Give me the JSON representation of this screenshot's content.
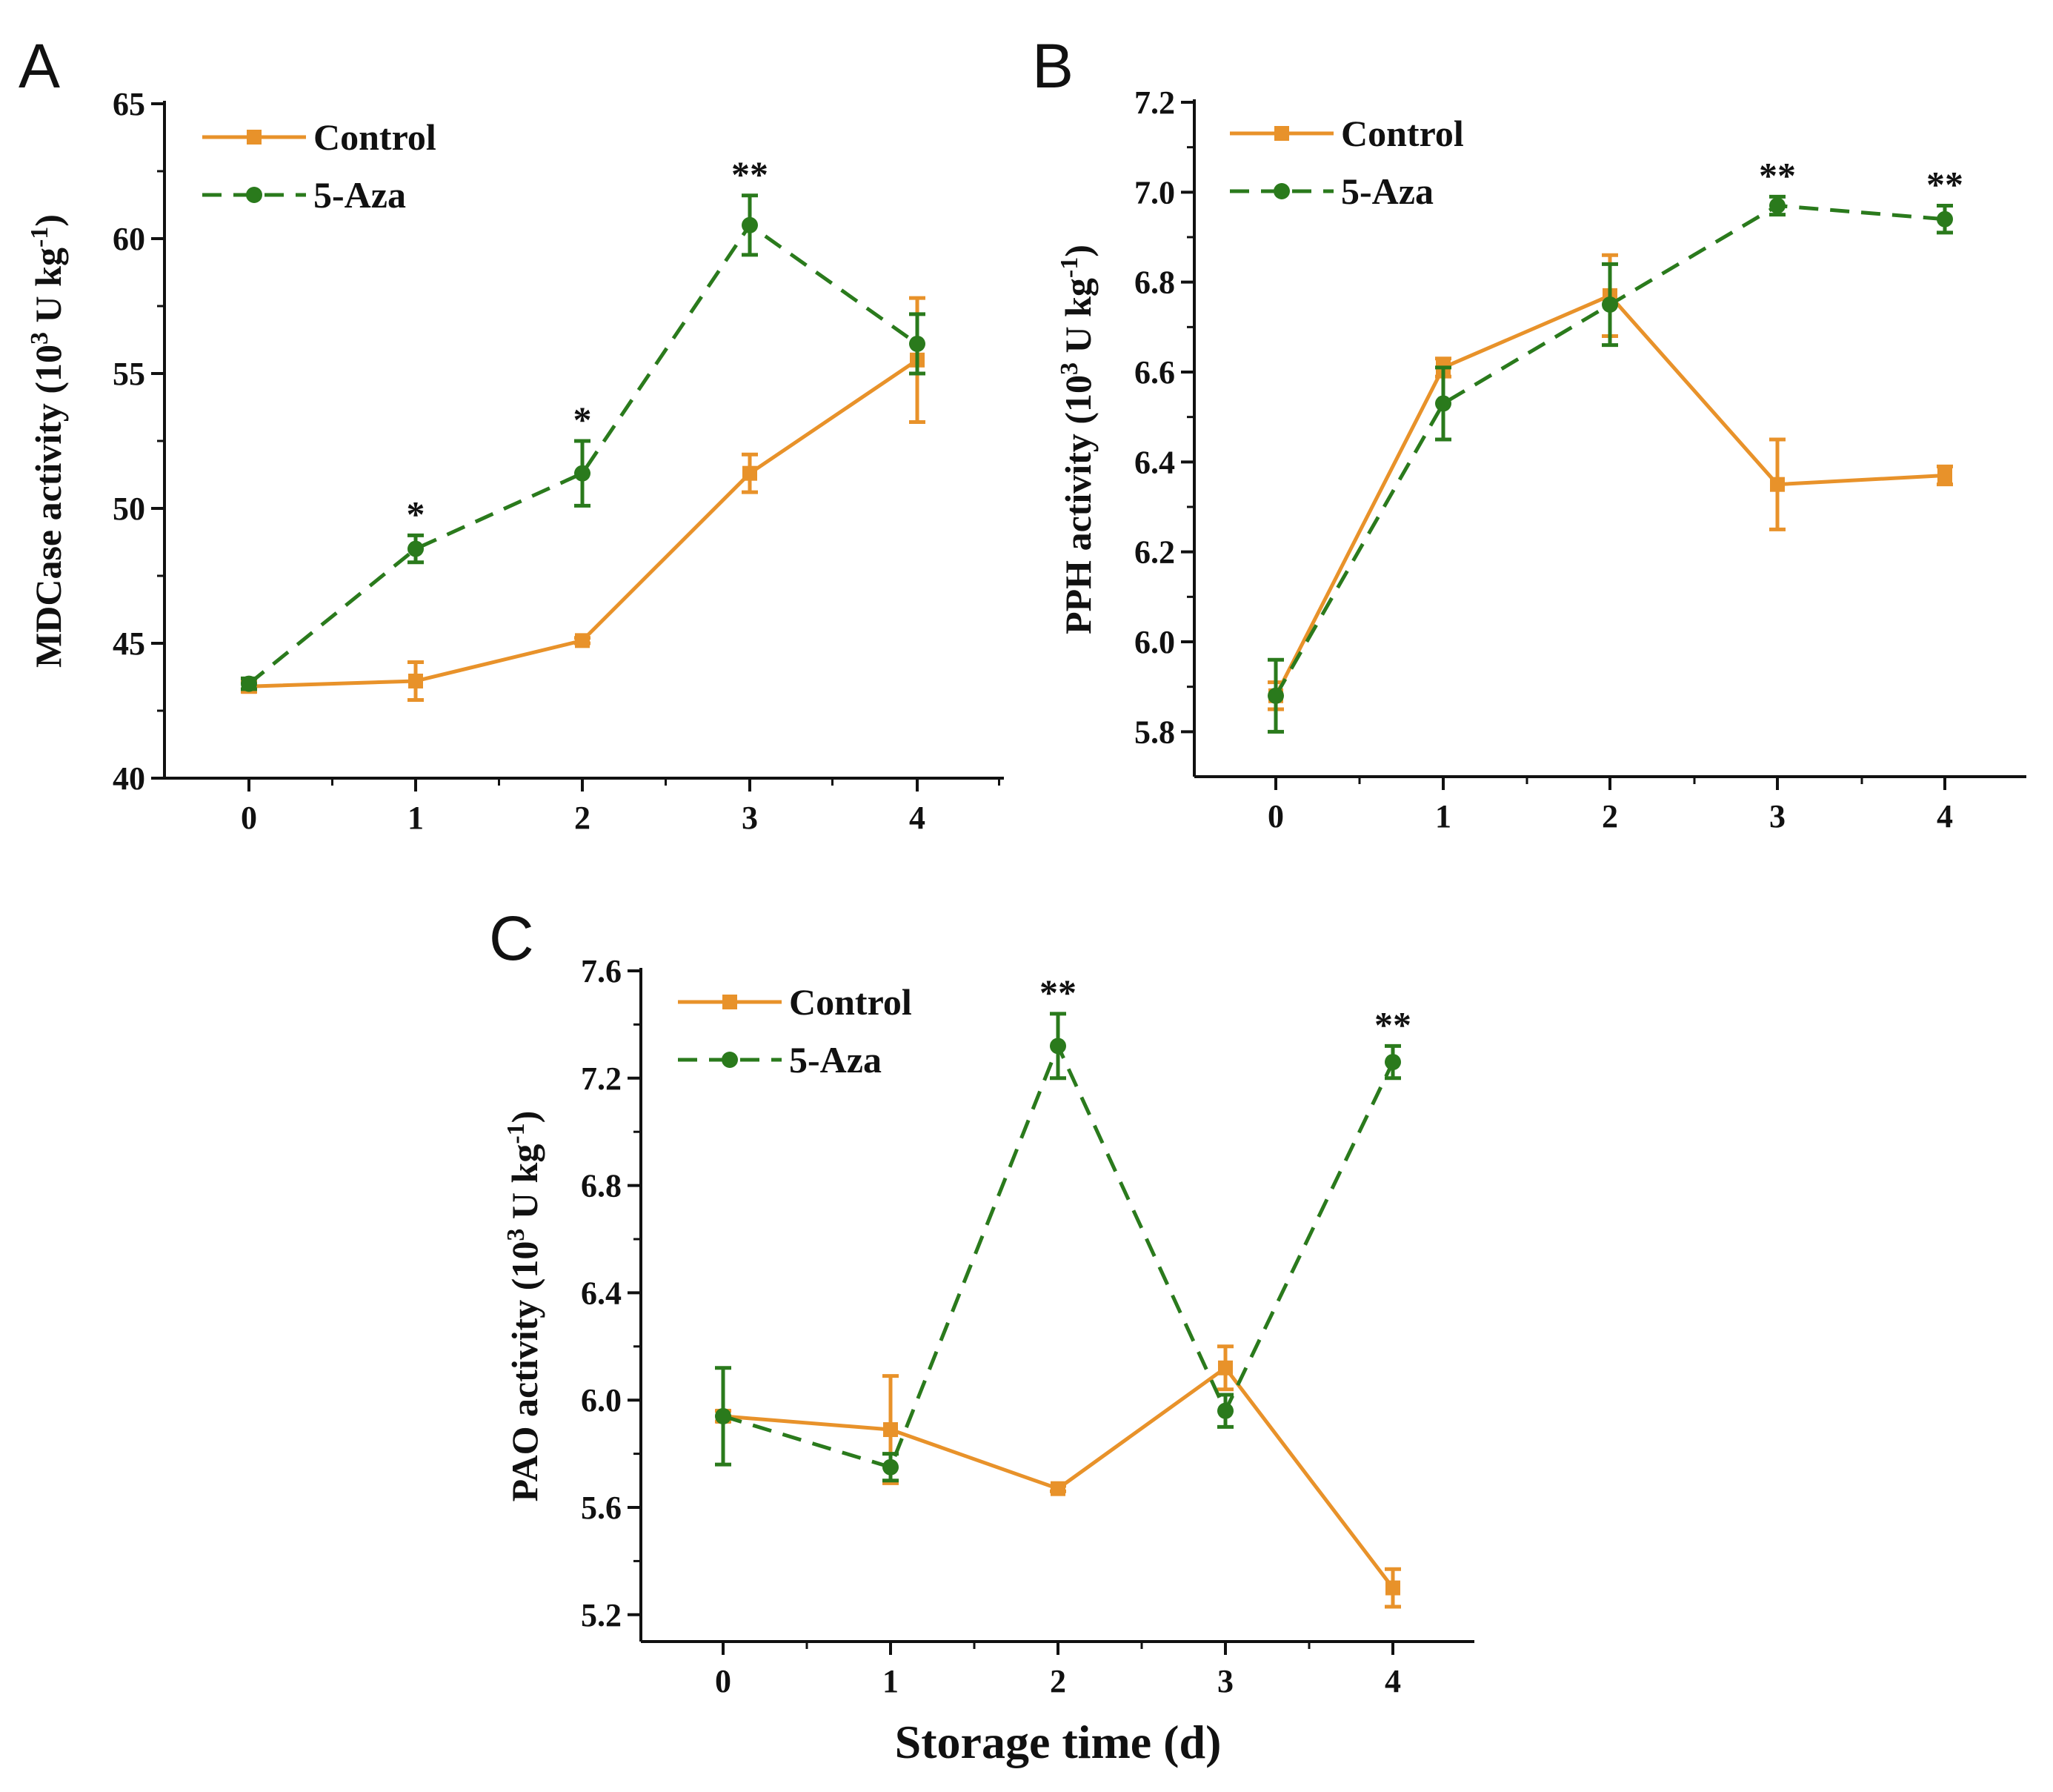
{
  "colors": {
    "control": "#e8922a",
    "aza": "#2a7a1c",
    "axis": "#111111"
  },
  "xlabel": "Storage time (d)",
  "chart_data": [
    {
      "panel": "A",
      "type": "line",
      "ylabel_main": "MDCase activity (10",
      "ylabel_sup1": "3",
      "ylabel_mid": " U kg",
      "ylabel_sup2": "-1",
      "ylabel_end": ")",
      "x": [
        0,
        1,
        2,
        3,
        4
      ],
      "xticks": [
        "0",
        "1",
        "2",
        "3",
        "4"
      ],
      "ylim": [
        40,
        65
      ],
      "yticks": [
        40,
        45,
        50,
        55,
        60,
        65
      ],
      "ytick_labels": [
        "40",
        "45",
        "50",
        "55",
        "60",
        "65"
      ],
      "legend": {
        "position": "top-left",
        "entries": [
          "Control",
          "5-Aza"
        ]
      },
      "series": [
        {
          "name": "Control",
          "values": [
            43.4,
            43.6,
            45.1,
            51.3,
            55.5
          ],
          "errors": [
            0.2,
            0.7,
            0.1,
            0.7,
            2.3
          ]
        },
        {
          "name": "5-Aza",
          "values": [
            43.5,
            48.5,
            51.3,
            60.5,
            56.1
          ],
          "errors": [
            0.2,
            0.5,
            1.2,
            1.1,
            1.1
          ]
        }
      ],
      "annotations": [
        {
          "x": 1,
          "text": "*"
        },
        {
          "x": 2,
          "text": "*"
        },
        {
          "x": 3,
          "text": "**"
        }
      ]
    },
    {
      "panel": "B",
      "type": "line",
      "ylabel_main": "PPH activity (10",
      "ylabel_sup1": "3",
      "ylabel_mid": " U kg",
      "ylabel_sup2": "-1",
      "ylabel_end": ")",
      "x": [
        0,
        1,
        2,
        3,
        4
      ],
      "xticks": [
        "0",
        "1",
        "2",
        "3",
        "4"
      ],
      "ylim": [
        5.7,
        7.2
      ],
      "yticks": [
        5.8,
        6.0,
        6.2,
        6.4,
        6.6,
        6.8,
        7.0,
        7.2
      ],
      "ytick_labels": [
        "5.8",
        "6.0",
        "6.2",
        "6.4",
        "6.6",
        "6.8",
        "7.0",
        "7.2"
      ],
      "legend": {
        "position": "top-left",
        "entries": [
          "Control",
          "5-Aza"
        ]
      },
      "series": [
        {
          "name": "Control",
          "values": [
            5.88,
            6.61,
            6.77,
            6.35,
            6.37
          ],
          "errors": [
            0.03,
            0.02,
            0.09,
            0.1,
            0.02
          ]
        },
        {
          "name": "5-Aza",
          "values": [
            5.88,
            6.53,
            6.75,
            6.97,
            6.94
          ],
          "errors": [
            0.08,
            0.08,
            0.09,
            0.02,
            0.03
          ]
        }
      ],
      "annotations": [
        {
          "x": 3,
          "text": "**"
        },
        {
          "x": 4,
          "text": "**"
        }
      ]
    },
    {
      "panel": "C",
      "type": "line",
      "ylabel_main": "PAO activity (10",
      "ylabel_sup1": "3",
      "ylabel_mid": " U kg",
      "ylabel_sup2": "-1",
      "ylabel_end": ")",
      "x": [
        0,
        1,
        2,
        3,
        4
      ],
      "xticks": [
        "0",
        "1",
        "2",
        "3",
        "4"
      ],
      "ylim": [
        5.1,
        7.6
      ],
      "yticks": [
        5.2,
        5.6,
        6.0,
        6.4,
        6.8,
        7.2,
        7.6
      ],
      "ytick_labels": [
        "5.2",
        "5.6",
        "6.0",
        "6.4",
        "6.8",
        "7.2",
        "7.6"
      ],
      "legend": {
        "position": "top-left",
        "entries": [
          "Control",
          "5-Aza"
        ]
      },
      "series": [
        {
          "name": "Control",
          "values": [
            5.94,
            5.89,
            5.67,
            6.12,
            5.3
          ],
          "errors": [
            0.02,
            0.2,
            0.01,
            0.08,
            0.07
          ]
        },
        {
          "name": "5-Aza",
          "values": [
            5.94,
            5.75,
            7.32,
            5.96,
            7.26
          ],
          "errors": [
            0.18,
            0.05,
            0.12,
            0.06,
            0.06
          ]
        }
      ],
      "annotations": [
        {
          "x": 2,
          "text": "**"
        },
        {
          "x": 4,
          "text": "**"
        }
      ]
    }
  ]
}
